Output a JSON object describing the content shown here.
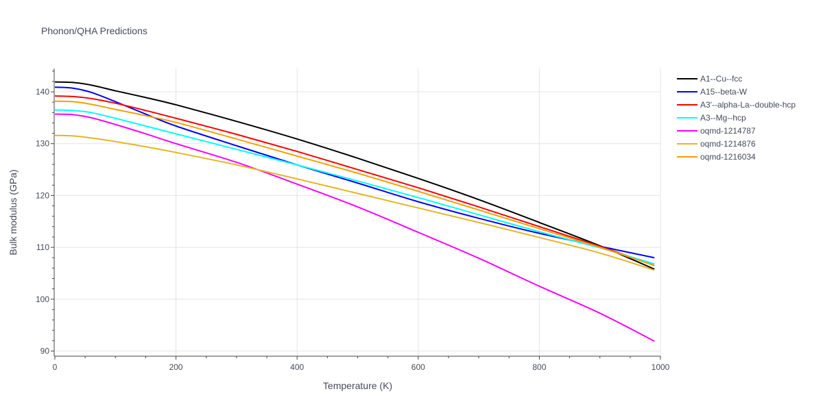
{
  "chart_data": {
    "type": "line",
    "title": "Phonon/QHA Predictions",
    "xlabel": "Temperature (K)",
    "ylabel": "Bulk modulus (GPa)",
    "xlim": [
      0,
      1000
    ],
    "ylim": [
      89,
      144.5
    ],
    "xticks": [
      0,
      200,
      400,
      600,
      800,
      1000
    ],
    "yticks": [
      90,
      100,
      110,
      120,
      130,
      140
    ],
    "grid": true,
    "legend_position": "top-right",
    "x": [
      0,
      30,
      60,
      100,
      150,
      200,
      300,
      400,
      500,
      600,
      700,
      800,
      900,
      990
    ],
    "series": [
      {
        "name": "A1--Cu--fcc",
        "color": "#000000",
        "values": [
          141.9,
          141.8,
          141.3,
          140.2,
          138.9,
          137.5,
          134.3,
          130.9,
          127.2,
          123.3,
          119.2,
          114.8,
          110.3,
          105.8
        ]
      },
      {
        "name": "A15--beta-W",
        "color": "#0000ff",
        "values": [
          140.9,
          140.7,
          139.9,
          138.1,
          135.7,
          133.4,
          129.6,
          125.9,
          122.4,
          118.8,
          115.6,
          112.7,
          110.2,
          108.0
        ]
      },
      {
        "name": "A3'--alpha-La--double-hcp",
        "color": "#ff0000",
        "values": [
          139.2,
          139.1,
          138.7,
          137.8,
          136.4,
          134.9,
          131.8,
          128.5,
          125.0,
          121.5,
          117.8,
          114.0,
          110.2,
          106.5
        ]
      },
      {
        "name": "A3--Mg--hcp",
        "color": "#00ffff",
        "values": [
          136.5,
          136.4,
          136.0,
          134.9,
          133.4,
          131.9,
          128.9,
          125.9,
          122.8,
          119.6,
          116.3,
          113.0,
          109.9,
          106.8
        ]
      },
      {
        "name": "oqmd-1214787",
        "color": "#ff00ff",
        "values": [
          135.7,
          135.6,
          135.0,
          133.7,
          131.9,
          130.0,
          126.4,
          122.2,
          117.8,
          112.9,
          107.9,
          102.5,
          97.3,
          91.9
        ]
      },
      {
        "name": "oqmd-1214876",
        "color": "#e6b422",
        "values": [
          131.6,
          131.5,
          131.1,
          130.4,
          129.4,
          128.3,
          125.9,
          123.2,
          120.4,
          117.6,
          114.8,
          111.9,
          108.9,
          105.6
        ]
      },
      {
        "name": "oqmd-1216034",
        "color": "#f5a000",
        "values": [
          138.2,
          138.1,
          137.6,
          136.6,
          135.4,
          134.1,
          130.9,
          127.6,
          124.3,
          120.8,
          117.2,
          113.6,
          110.0,
          106.5
        ]
      }
    ]
  }
}
